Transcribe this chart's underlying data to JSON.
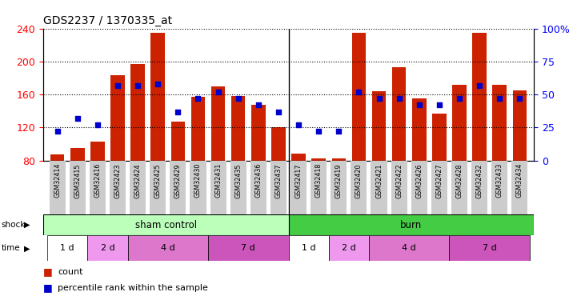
{
  "title": "GDS2237 / 1370335_at",
  "categories": [
    "GSM32414",
    "GSM32415",
    "GSM32416",
    "GSM32423",
    "GSM32424",
    "GSM32425",
    "GSM32429",
    "GSM32430",
    "GSM32431",
    "GSM32435",
    "GSM32436",
    "GSM32437",
    "GSM32417",
    "GSM32418",
    "GSM32419",
    "GSM32420",
    "GSM32421",
    "GSM32422",
    "GSM32426",
    "GSM32427",
    "GSM32428",
    "GSM32432",
    "GSM32433",
    "GSM32434"
  ],
  "red_values": [
    87,
    95,
    103,
    183,
    197,
    235,
    127,
    157,
    170,
    158,
    148,
    120,
    88,
    83,
    83,
    235,
    164,
    193,
    155,
    137,
    172,
    235,
    172,
    165
  ],
  "blue_values_pct": [
    22,
    32,
    27,
    57,
    57,
    58,
    37,
    47,
    52,
    47,
    42,
    37,
    27,
    22,
    22,
    52,
    47,
    47,
    42,
    42,
    47,
    57,
    47,
    47
  ],
  "ylim_left": [
    80,
    240
  ],
  "ylim_right": [
    0,
    100
  ],
  "yticks_left": [
    80,
    120,
    160,
    200,
    240
  ],
  "yticks_right": [
    0,
    25,
    50,
    75,
    100
  ],
  "bar_color": "#cc2200",
  "dot_color": "#0000cc",
  "shock_sham_label": "sham control",
  "shock_burn_label": "burn",
  "shock_sham_color": "#bbffbb",
  "shock_burn_color": "#44cc44",
  "sham_count": 12,
  "burn_count": 12,
  "sham_time_spans": [
    2,
    2,
    4,
    4
  ],
  "burn_time_spans": [
    2,
    2,
    4,
    4
  ],
  "time_labels": [
    "1 d",
    "2 d",
    "4 d",
    "7 d"
  ],
  "time_bg_colors": [
    "#ffffff",
    "#ee99ee",
    "#dd77cc",
    "#cc55bb"
  ],
  "legend_count_label": "count",
  "legend_pct_label": "percentile rank within the sample",
  "bar_width": 0.7,
  "background_color": "#ffffff",
  "tick_bg_color": "#cccccc"
}
